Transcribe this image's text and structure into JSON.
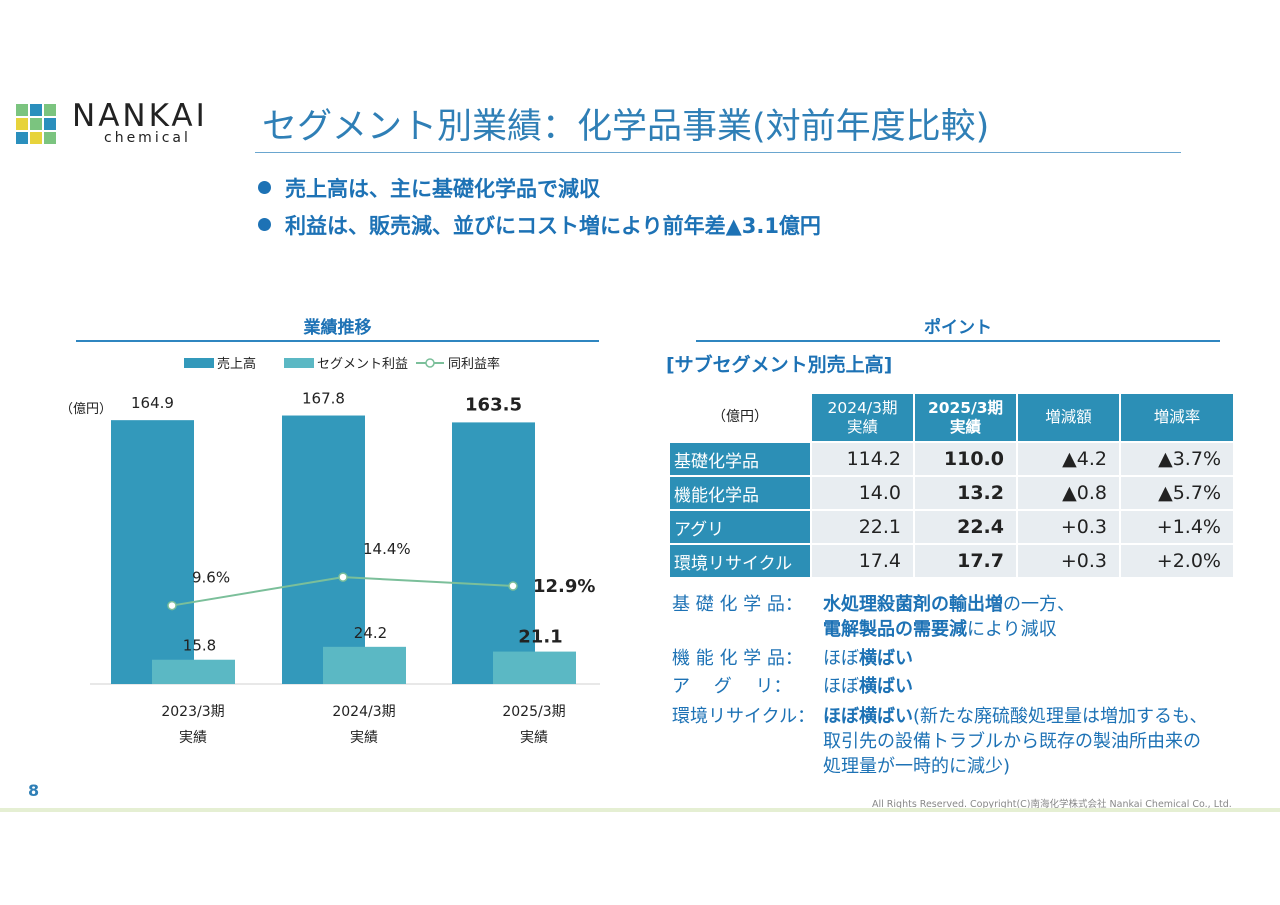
{
  "brand": {
    "name": "NANKAI",
    "sub": "chemical"
  },
  "title": "セグメント別業績：化学品事業(対前年度比較)",
  "bullets": [
    "売上高は、主に基礎化学品で減収",
    "利益は、販売減、並びにコスト増により前年差▲3.1億円"
  ],
  "left_section": {
    "title": "業績推移"
  },
  "right_section": {
    "title": "ポイント",
    "subtitle": "[サブセグメント別売上高]"
  },
  "colors": {
    "bar_sales": "#3399bb",
    "bar_profit": "#5bb8c4",
    "line": "#7bbf9a",
    "accent": "#1d72b5"
  },
  "chart_data": {
    "type": "bar",
    "unit": "（億円）",
    "categories": [
      "2023/3期",
      "2024/3期",
      "2025/3期"
    ],
    "category_sub": [
      "実績",
      "実績",
      "実績"
    ],
    "series": [
      {
        "name": "売上高",
        "values": [
          164.9,
          167.8,
          163.5
        ],
        "labels": [
          "164.9",
          "167.8",
          "163.5"
        ]
      },
      {
        "name": "セグメント利益",
        "values": [
          15.8,
          24.2,
          21.1
        ],
        "labels": [
          "15.8",
          "24.2",
          "21.1"
        ]
      },
      {
        "name": "同利益率",
        "type": "line",
        "values": [
          9.6,
          14.4,
          12.9
        ],
        "labels": [
          "9.6%",
          "14.4%",
          "12.9%"
        ]
      }
    ],
    "ylim": [
      0,
      170
    ],
    "legend": "top"
  },
  "table": {
    "unit": "（億円）",
    "headers": [
      {
        "l1": "2024/3期",
        "l2": "実績"
      },
      {
        "l1": "2025/3期",
        "l2": "実績"
      },
      {
        "l1": "増減額",
        "l2": ""
      },
      {
        "l1": "増減率",
        "l2": ""
      }
    ],
    "rows": [
      {
        "name": "基礎化学品",
        "v2024": "114.2",
        "v2025": "110.0",
        "diff": "▲4.2",
        "rate": "▲3.7%"
      },
      {
        "name": "機能化学品",
        "v2024": "14.0",
        "v2025": "13.2",
        "diff": "▲0.8",
        "rate": "▲5.7%"
      },
      {
        "name": "アグリ",
        "v2024": "22.1",
        "v2025": "22.4",
        "diff": "+0.3",
        "rate": "+1.4%"
      },
      {
        "name": "環境リサイクル",
        "v2024": "17.4",
        "v2025": "17.7",
        "diff": "+0.3",
        "rate": "+2.0%"
      }
    ]
  },
  "notes": {
    "n1": {
      "label": "基 礎 化 学 品：",
      "b1": "水処理殺菌剤の輸出増",
      "t1": "の一方、",
      "b2": "電解製品の需要減",
      "t2": "により減収"
    },
    "n2": {
      "label": "機 能 化 学 品：",
      "t1": "ほぼ",
      "b1": "横ばい"
    },
    "n3": {
      "label": "ア　 グ　 リ：",
      "t1": "ほぼ",
      "b1": "横ばい"
    },
    "n4": {
      "label": "環境リサイクル：",
      "b1": "ほぼ横ばい",
      "t1": "(新たな廃硫酸処理量は増加するも、",
      "t2": "取引先の設備トラブルから既存の製油所由来の",
      "t3": "処理量が一時的に減少)"
    }
  },
  "footer": {
    "page": "8",
    "copyright": "All Rights Reserved. Copyright(C)南海化学株式会社 Nankai Chemical Co., Ltd."
  }
}
